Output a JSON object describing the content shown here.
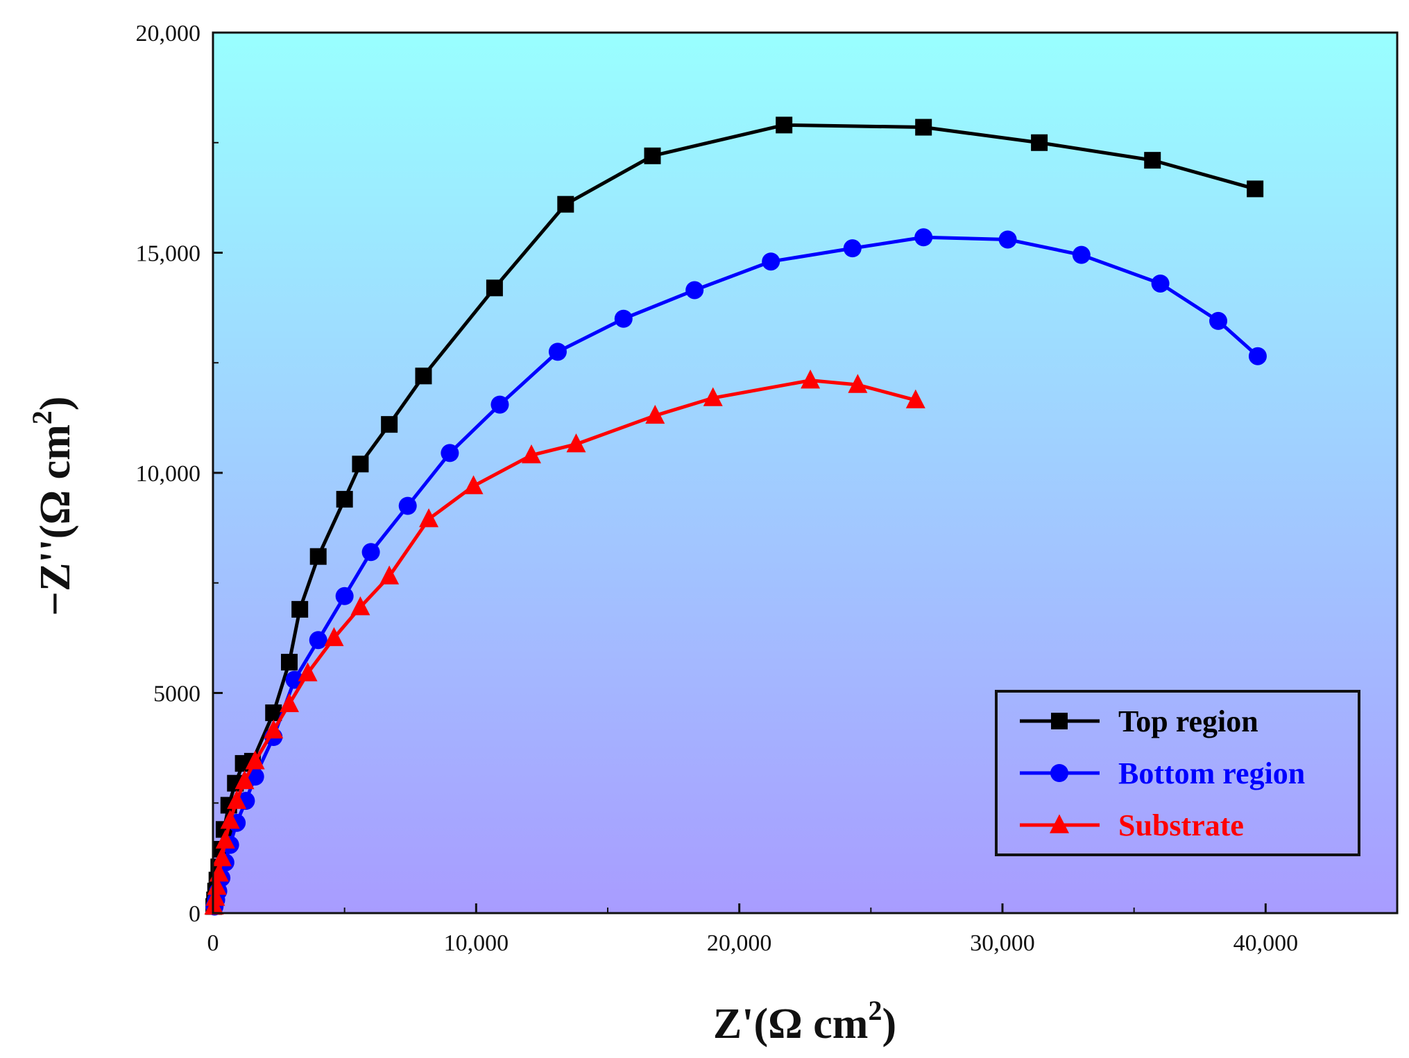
{
  "chart_data": {
    "type": "line",
    "title": "",
    "xlabel": {
      "main": "Z'(Ω cm",
      "sup": "2",
      "close": ")"
    },
    "ylabel": {
      "main": "−Z''(Ω cm",
      "sup": "2",
      "close": ")"
    },
    "xlim": [
      0,
      45000
    ],
    "ylim": [
      0,
      20000
    ],
    "xticks": [
      {
        "value": 0,
        "label": "0"
      },
      {
        "value": 10000,
        "label": "10,000"
      },
      {
        "value": 20000,
        "label": "20,000"
      },
      {
        "value": 30000,
        "label": "30,000"
      },
      {
        "value": 40000,
        "label": "40,000"
      }
    ],
    "yticks": [
      {
        "value": 0,
        "label": "0"
      },
      {
        "value": 5000,
        "label": "5000"
      },
      {
        "value": 10000,
        "label": "10,000"
      },
      {
        "value": 15000,
        "label": "15,000"
      },
      {
        "value": 20000,
        "label": "20,000"
      }
    ],
    "background_gradient": {
      "top": "#99ffff",
      "bottom": "#a89cff"
    },
    "legend_position": "bottom-right",
    "series": [
      {
        "name": "Top region",
        "color": "#000000",
        "marker": "square",
        "x": [
          30,
          60,
          100,
          150,
          220,
          300,
          420,
          600,
          850,
          1150,
          1500,
          2300,
          2900,
          3300,
          4000,
          5000,
          5600,
          6700,
          8000,
          10700,
          13400,
          16700,
          21700,
          27000,
          31400,
          35700,
          39600
        ],
        "y": [
          150,
          300,
          500,
          750,
          1050,
          1450,
          1900,
          2450,
          2950,
          3400,
          3450,
          4550,
          5700,
          6900,
          8100,
          9400,
          10200,
          11100,
          12200,
          14200,
          16100,
          17200,
          17900,
          17850,
          17500,
          17100,
          16450
        ]
      },
      {
        "name": "Bottom region",
        "color": "#0000ff",
        "marker": "circle",
        "x": [
          60,
          120,
          200,
          320,
          470,
          650,
          900,
          1250,
          1600,
          2300,
          3100,
          4000,
          5000,
          6000,
          7400,
          9000,
          10900,
          13100,
          15600,
          18300,
          21200,
          24300,
          27000,
          30200,
          33000,
          36000,
          38200,
          39700
        ],
        "y": [
          150,
          300,
          500,
          800,
          1150,
          1550,
          2050,
          2550,
          3100,
          4000,
          5300,
          6200,
          7200,
          8200,
          9250,
          10450,
          11550,
          12750,
          13500,
          14150,
          14800,
          15100,
          15350,
          15300,
          14950,
          14300,
          13450,
          12650
        ]
      },
      {
        "name": "Substrate",
        "color": "#ff0000",
        "marker": "triangle",
        "x": [
          40,
          90,
          150,
          230,
          340,
          470,
          650,
          900,
          1200,
          1600,
          2300,
          2900,
          3600,
          4600,
          5600,
          6700,
          8200,
          9900,
          12100,
          13800,
          16800,
          19000,
          22700,
          24500,
          26700
        ],
        "y": [
          150,
          350,
          600,
          900,
          1250,
          1650,
          2100,
          2550,
          3000,
          3450,
          4150,
          4750,
          5450,
          6250,
          6950,
          7650,
          8950,
          9700,
          10400,
          10650,
          11300,
          11700,
          12100,
          12000,
          11650
        ]
      }
    ]
  }
}
